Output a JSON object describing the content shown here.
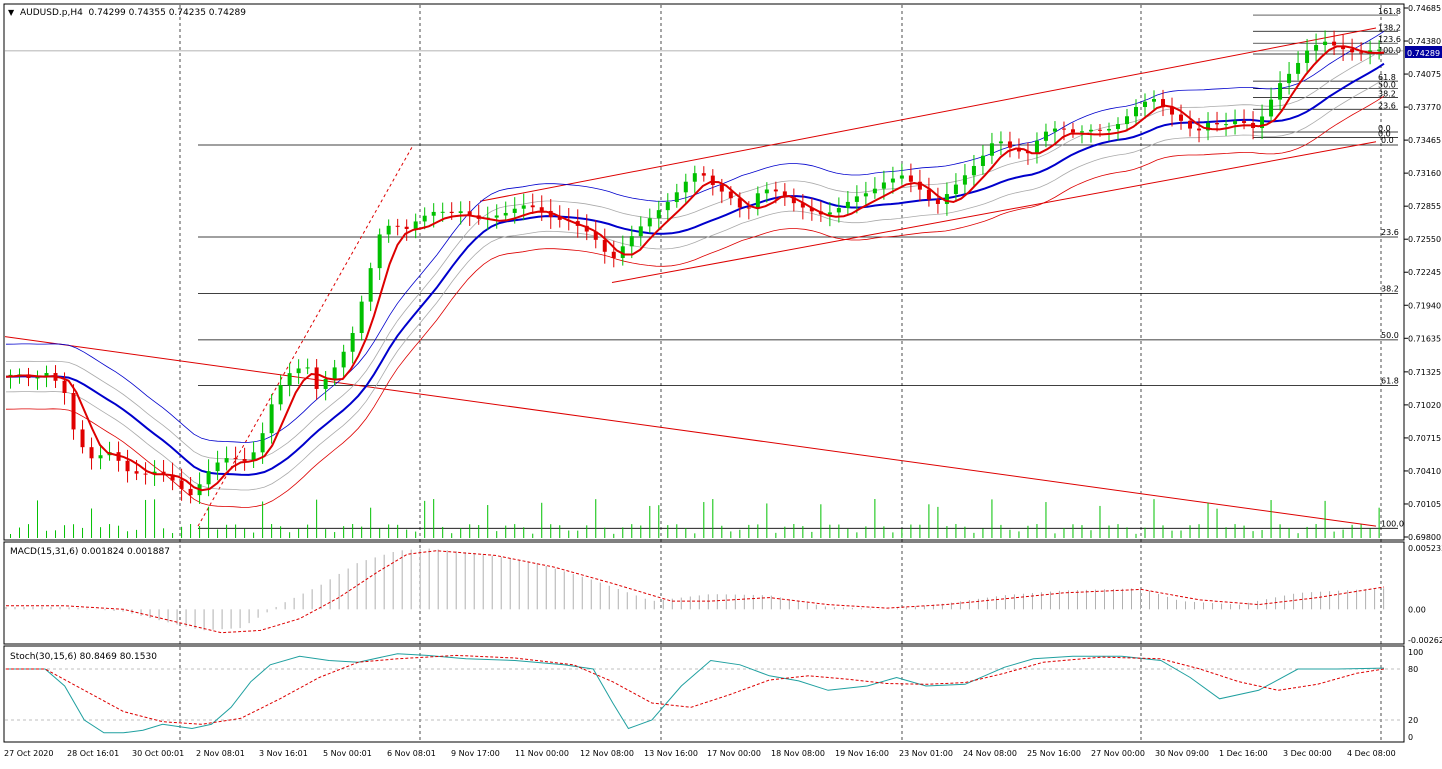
{
  "chart_data": [
    {
      "type": "candlestick",
      "title": "AUDUSD.p,H4  0.74299 0.74355 0.74235 0.74289",
      "symbol": "AUDUSD.p",
      "timeframe": "H4",
      "ohlc_header": {
        "open": 0.74299,
        "high": 0.74355,
        "low": 0.74235,
        "close": 0.74289
      },
      "last_price": 0.74289,
      "last_price_label": "0.74289",
      "ylim": [
        0.698,
        0.74685
      ],
      "y_ticks": [
        "0.74685",
        "0.74380",
        "0.74075",
        "0.73770",
        "0.73465",
        "0.73160",
        "0.72855",
        "0.72550",
        "0.72245",
        "0.71940",
        "0.71635",
        "0.71325",
        "0.71020",
        "0.70715",
        "0.70410",
        "0.70105",
        "0.69800"
      ],
      "x_ticks": [
        "27 Oct 2020",
        "28 Oct 16:01",
        "30 Oct 00:01",
        "2 Nov 08:01",
        "3 Nov 16:01",
        "5 Nov 00:01",
        "6 Nov 08:01",
        "9 Nov 17:00",
        "11 Nov 00:00",
        "12 Nov 08:00",
        "13 Nov 16:00",
        "17 Nov 00:00",
        "18 Nov 08:00",
        "19 Nov 16:00",
        "23 Nov 01:00",
        "24 Nov 08:00",
        "25 Nov 16:00",
        "27 Nov 00:00",
        "30 Nov 09:00",
        "1 Dec 16:00",
        "3 Dec 00:00",
        "4 Dec 08:00"
      ],
      "close_path": [
        [
          0,
          0.7128
        ],
        [
          8,
          0.7131
        ],
        [
          16,
          0.7125
        ],
        [
          24,
          0.7132
        ],
        [
          32,
          0.7114
        ],
        [
          38,
          0.707
        ],
        [
          46,
          0.7052
        ],
        [
          56,
          0.7058
        ],
        [
          64,
          0.704
        ],
        [
          72,
          0.7036
        ],
        [
          80,
          0.704
        ],
        [
          88,
          0.703
        ],
        [
          96,
          0.7016
        ],
        [
          100,
          0.7024
        ],
        [
          108,
          0.7045
        ],
        [
          116,
          0.7052
        ],
        [
          124,
          0.7048
        ],
        [
          131,
          0.706
        ],
        [
          140,
          0.7112
        ],
        [
          148,
          0.7131
        ],
        [
          156,
          0.7136
        ],
        [
          162,
          0.711
        ],
        [
          166,
          0.7125
        ],
        [
          172,
          0.7138
        ],
        [
          180,
          0.7168
        ],
        [
          186,
          0.7208
        ],
        [
          194,
          0.7262
        ],
        [
          200,
          0.7266
        ],
        [
          206,
          0.726
        ],
        [
          214,
          0.7272
        ],
        [
          222,
          0.7278
        ],
        [
          230,
          0.7276
        ],
        [
          236,
          0.7278
        ],
        [
          242,
          0.727
        ],
        [
          250,
          0.7272
        ],
        [
          258,
          0.7276
        ],
        [
          266,
          0.7283
        ],
        [
          274,
          0.728
        ],
        [
          282,
          0.727
        ],
        [
          290,
          0.7268
        ],
        [
          298,
          0.726
        ],
        [
          304,
          0.725
        ],
        [
          308,
          0.724
        ],
        [
          312,
          0.7232
        ],
        [
          318,
          0.7246
        ],
        [
          326,
          0.7262
        ],
        [
          334,
          0.7275
        ],
        [
          342,
          0.7288
        ],
        [
          350,
          0.7305
        ],
        [
          356,
          0.7315
        ],
        [
          364,
          0.73
        ],
        [
          372,
          0.729
        ],
        [
          380,
          0.7275
        ],
        [
          388,
          0.7298
        ],
        [
          396,
          0.7295
        ],
        [
          404,
          0.7285
        ],
        [
          412,
          0.7278
        ],
        [
          420,
          0.7273
        ],
        [
          428,
          0.728
        ],
        [
          436,
          0.729
        ],
        [
          444,
          0.7295
        ],
        [
          452,
          0.7305
        ],
        [
          460,
          0.731
        ],
        [
          468,
          0.73
        ],
        [
          472,
          0.729
        ],
        [
          478,
          0.7283
        ],
        [
          484,
          0.7295
        ],
        [
          492,
          0.731
        ],
        [
          500,
          0.7325
        ],
        [
          508,
          0.7345
        ],
        [
          516,
          0.7335
        ],
        [
          524,
          0.733
        ],
        [
          532,
          0.735
        ],
        [
          540,
          0.7355
        ],
        [
          548,
          0.735
        ],
        [
          556,
          0.7353
        ],
        [
          564,
          0.7352
        ],
        [
          572,
          0.736
        ],
        [
          580,
          0.7375
        ],
        [
          588,
          0.7383
        ],
        [
          596,
          0.737
        ],
        [
          604,
          0.736
        ],
        [
          610,
          0.735
        ],
        [
          616,
          0.736
        ],
        [
          624,
          0.7358
        ],
        [
          632,
          0.7363
        ],
        [
          640,
          0.7355
        ],
        [
          646,
          0.7372
        ],
        [
          652,
          0.7395
        ],
        [
          660,
          0.741
        ],
        [
          668,
          0.743
        ],
        [
          676,
          0.7436
        ],
        [
          684,
          0.743
        ],
        [
          692,
          0.7425
        ],
        [
          698,
          0.7428
        ],
        [
          704,
          0.7429
        ]
      ],
      "fib_right": [
        {
          "label": "161.8",
          "price": 0.7462
        },
        {
          "label": "138.2",
          "price": 0.7447
        },
        {
          "label": "123.6",
          "price": 0.7436
        },
        {
          "label": "100.0",
          "price": 0.7426
        },
        {
          "label": "61.8",
          "price": 0.7401
        },
        {
          "label": "50.0",
          "price": 0.7394
        },
        {
          "label": "38.2",
          "price": 0.7386
        },
        {
          "label": "23.6",
          "price": 0.7375
        },
        {
          "label": "0.0",
          "price": 0.7354
        },
        {
          "label": "0.0",
          "price": 0.7349
        }
      ],
      "fib_main": [
        {
          "label": "0.0",
          "price": 0.7342
        },
        {
          "label": "23.6",
          "price": 0.7257
        },
        {
          "label": "38.2",
          "price": 0.7205
        },
        {
          "label": "50.0",
          "price": 0.7162
        },
        {
          "label": "61.8",
          "price": 0.712
        },
        {
          "label": "100.0",
          "price": 0.6988
        }
      ],
      "grid": false,
      "colors": {
        "up": "#00c000",
        "down": "#e00000",
        "ma_blue": "#0000cc",
        "ma_red": "#dd0000",
        "band": "#aaaaaa",
        "trend": "#dd0000",
        "fib": "#000000"
      }
    },
    {
      "type": "bar",
      "title": "MACD(15,31,6) 0.001824 0.001887",
      "y_ticks": [
        "0.005233",
        "0.00",
        "-0.00262"
      ],
      "ylim": [
        -0.00262,
        0.005233
      ],
      "histogram_shape": [
        [
          0,
          0.0002
        ],
        [
          30,
          0.0002
        ],
        [
          60,
          -0.0002
        ],
        [
          80,
          -0.001
        ],
        [
          100,
          -0.0018
        ],
        [
          120,
          -0.0016
        ],
        [
          140,
          0.0004
        ],
        [
          160,
          0.002
        ],
        [
          180,
          0.004
        ],
        [
          200,
          0.005
        ],
        [
          215,
          0.0052
        ],
        [
          240,
          0.0048
        ],
        [
          270,
          0.004
        ],
        [
          300,
          0.0025
        ],
        [
          330,
          0.0007
        ],
        [
          360,
          0.0013
        ],
        [
          390,
          0.0012
        ],
        [
          420,
          0.0002
        ],
        [
          450,
          0.0
        ],
        [
          480,
          0.0005
        ],
        [
          510,
          0.0012
        ],
        [
          540,
          0.0016
        ],
        [
          560,
          0.0017
        ],
        [
          580,
          0.0018
        ],
        [
          600,
          0.0007
        ],
        [
          630,
          0.0004
        ],
        [
          660,
          0.0014
        ],
        [
          704,
          0.0018
        ]
      ],
      "signal_shape": [
        [
          0,
          0.0003
        ],
        [
          30,
          0.0003
        ],
        [
          60,
          0.0
        ],
        [
          90,
          -0.0012
        ],
        [
          110,
          -0.002
        ],
        [
          130,
          -0.0018
        ],
        [
          150,
          -0.0008
        ],
        [
          170,
          0.001
        ],
        [
          190,
          0.0032
        ],
        [
          205,
          0.0047
        ],
        [
          220,
          0.005
        ],
        [
          250,
          0.0046
        ],
        [
          280,
          0.0036
        ],
        [
          310,
          0.0022
        ],
        [
          340,
          0.0007
        ],
        [
          360,
          0.0007
        ],
        [
          390,
          0.001
        ],
        [
          420,
          0.0004
        ],
        [
          450,
          0.0001
        ],
        [
          480,
          0.0004
        ],
        [
          510,
          0.0009
        ],
        [
          540,
          0.0014
        ],
        [
          580,
          0.0017
        ],
        [
          610,
          0.0008
        ],
        [
          640,
          0.0004
        ],
        [
          670,
          0.001
        ],
        [
          704,
          0.0019
        ]
      ]
    },
    {
      "type": "line",
      "title": "Stoch(30,15,6) 80.8469 80.1530",
      "y_ticks": [
        "100",
        "80",
        "20",
        "0"
      ],
      "ylim": [
        0,
        100
      ],
      "main_shape": [
        [
          0,
          80
        ],
        [
          20,
          80
        ],
        [
          30,
          60
        ],
        [
          40,
          20
        ],
        [
          50,
          5
        ],
        [
          60,
          5
        ],
        [
          70,
          8
        ],
        [
          80,
          15
        ],
        [
          95,
          10
        ],
        [
          105,
          15
        ],
        [
          115,
          35
        ],
        [
          125,
          65
        ],
        [
          135,
          85
        ],
        [
          150,
          95
        ],
        [
          165,
          90
        ],
        [
          180,
          88
        ],
        [
          200,
          98
        ],
        [
          215,
          96
        ],
        [
          235,
          92
        ],
        [
          260,
          90
        ],
        [
          285,
          85
        ],
        [
          300,
          80
        ],
        [
          310,
          40
        ],
        [
          318,
          10
        ],
        [
          330,
          20
        ],
        [
          345,
          60
        ],
        [
          360,
          90
        ],
        [
          375,
          85
        ],
        [
          390,
          72
        ],
        [
          405,
          66
        ],
        [
          420,
          55
        ],
        [
          440,
          60
        ],
        [
          455,
          70
        ],
        [
          470,
          60
        ],
        [
          490,
          62
        ],
        [
          510,
          82
        ],
        [
          525,
          92
        ],
        [
          545,
          95
        ],
        [
          570,
          95
        ],
        [
          590,
          90
        ],
        [
          605,
          70
        ],
        [
          620,
          45
        ],
        [
          640,
          55
        ],
        [
          660,
          80
        ],
        [
          680,
          80
        ],
        [
          704,
          81
        ]
      ],
      "signal_shape": [
        [
          0,
          80
        ],
        [
          20,
          80
        ],
        [
          40,
          55
        ],
        [
          60,
          30
        ],
        [
          80,
          18
        ],
        [
          100,
          15
        ],
        [
          120,
          22
        ],
        [
          140,
          45
        ],
        [
          160,
          70
        ],
        [
          180,
          88
        ],
        [
          200,
          92
        ],
        [
          230,
          96
        ],
        [
          260,
          93
        ],
        [
          290,
          85
        ],
        [
          310,
          65
        ],
        [
          330,
          40
        ],
        [
          350,
          35
        ],
        [
          370,
          50
        ],
        [
          390,
          67
        ],
        [
          410,
          72
        ],
        [
          430,
          68
        ],
        [
          450,
          63
        ],
        [
          470,
          62
        ],
        [
          490,
          64
        ],
        [
          510,
          75
        ],
        [
          530,
          88
        ],
        [
          560,
          94
        ],
        [
          590,
          92
        ],
        [
          610,
          80
        ],
        [
          630,
          65
        ],
        [
          650,
          55
        ],
        [
          670,
          62
        ],
        [
          690,
          75
        ],
        [
          704,
          80
        ]
      ]
    }
  ]
}
